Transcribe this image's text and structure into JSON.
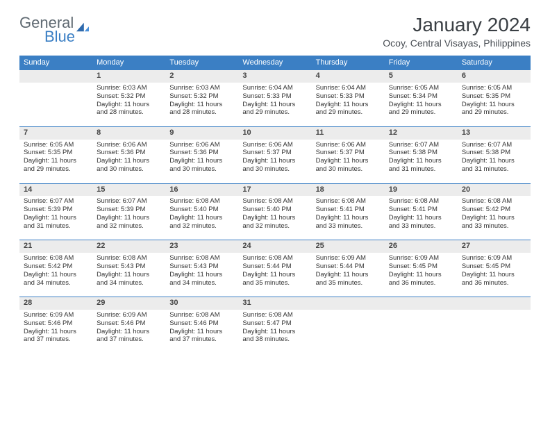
{
  "brand": {
    "part1": "General",
    "part2": "Blue"
  },
  "title": "January 2024",
  "location": "Ocoy, Central Visayas, Philippines",
  "colors": {
    "header_bg": "#3b7fc4",
    "daynum_bg": "#ececec",
    "border": "#3b7fc4"
  },
  "weekdays": [
    "Sunday",
    "Monday",
    "Tuesday",
    "Wednesday",
    "Thursday",
    "Friday",
    "Saturday"
  ],
  "weeks": [
    {
      "nums": [
        "",
        "1",
        "2",
        "3",
        "4",
        "5",
        "6"
      ],
      "cells": [
        null,
        {
          "sunrise": "Sunrise: 6:03 AM",
          "sunset": "Sunset: 5:32 PM",
          "dl1": "Daylight: 11 hours",
          "dl2": "and 28 minutes."
        },
        {
          "sunrise": "Sunrise: 6:03 AM",
          "sunset": "Sunset: 5:32 PM",
          "dl1": "Daylight: 11 hours",
          "dl2": "and 28 minutes."
        },
        {
          "sunrise": "Sunrise: 6:04 AM",
          "sunset": "Sunset: 5:33 PM",
          "dl1": "Daylight: 11 hours",
          "dl2": "and 29 minutes."
        },
        {
          "sunrise": "Sunrise: 6:04 AM",
          "sunset": "Sunset: 5:33 PM",
          "dl1": "Daylight: 11 hours",
          "dl2": "and 29 minutes."
        },
        {
          "sunrise": "Sunrise: 6:05 AM",
          "sunset": "Sunset: 5:34 PM",
          "dl1": "Daylight: 11 hours",
          "dl2": "and 29 minutes."
        },
        {
          "sunrise": "Sunrise: 6:05 AM",
          "sunset": "Sunset: 5:35 PM",
          "dl1": "Daylight: 11 hours",
          "dl2": "and 29 minutes."
        }
      ]
    },
    {
      "nums": [
        "7",
        "8",
        "9",
        "10",
        "11",
        "12",
        "13"
      ],
      "cells": [
        {
          "sunrise": "Sunrise: 6:05 AM",
          "sunset": "Sunset: 5:35 PM",
          "dl1": "Daylight: 11 hours",
          "dl2": "and 29 minutes."
        },
        {
          "sunrise": "Sunrise: 6:06 AM",
          "sunset": "Sunset: 5:36 PM",
          "dl1": "Daylight: 11 hours",
          "dl2": "and 30 minutes."
        },
        {
          "sunrise": "Sunrise: 6:06 AM",
          "sunset": "Sunset: 5:36 PM",
          "dl1": "Daylight: 11 hours",
          "dl2": "and 30 minutes."
        },
        {
          "sunrise": "Sunrise: 6:06 AM",
          "sunset": "Sunset: 5:37 PM",
          "dl1": "Daylight: 11 hours",
          "dl2": "and 30 minutes."
        },
        {
          "sunrise": "Sunrise: 6:06 AM",
          "sunset": "Sunset: 5:37 PM",
          "dl1": "Daylight: 11 hours",
          "dl2": "and 30 minutes."
        },
        {
          "sunrise": "Sunrise: 6:07 AM",
          "sunset": "Sunset: 5:38 PM",
          "dl1": "Daylight: 11 hours",
          "dl2": "and 31 minutes."
        },
        {
          "sunrise": "Sunrise: 6:07 AM",
          "sunset": "Sunset: 5:38 PM",
          "dl1": "Daylight: 11 hours",
          "dl2": "and 31 minutes."
        }
      ]
    },
    {
      "nums": [
        "14",
        "15",
        "16",
        "17",
        "18",
        "19",
        "20"
      ],
      "cells": [
        {
          "sunrise": "Sunrise: 6:07 AM",
          "sunset": "Sunset: 5:39 PM",
          "dl1": "Daylight: 11 hours",
          "dl2": "and 31 minutes."
        },
        {
          "sunrise": "Sunrise: 6:07 AM",
          "sunset": "Sunset: 5:39 PM",
          "dl1": "Daylight: 11 hours",
          "dl2": "and 32 minutes."
        },
        {
          "sunrise": "Sunrise: 6:08 AM",
          "sunset": "Sunset: 5:40 PM",
          "dl1": "Daylight: 11 hours",
          "dl2": "and 32 minutes."
        },
        {
          "sunrise": "Sunrise: 6:08 AM",
          "sunset": "Sunset: 5:40 PM",
          "dl1": "Daylight: 11 hours",
          "dl2": "and 32 minutes."
        },
        {
          "sunrise": "Sunrise: 6:08 AM",
          "sunset": "Sunset: 5:41 PM",
          "dl1": "Daylight: 11 hours",
          "dl2": "and 33 minutes."
        },
        {
          "sunrise": "Sunrise: 6:08 AM",
          "sunset": "Sunset: 5:41 PM",
          "dl1": "Daylight: 11 hours",
          "dl2": "and 33 minutes."
        },
        {
          "sunrise": "Sunrise: 6:08 AM",
          "sunset": "Sunset: 5:42 PM",
          "dl1": "Daylight: 11 hours",
          "dl2": "and 33 minutes."
        }
      ]
    },
    {
      "nums": [
        "21",
        "22",
        "23",
        "24",
        "25",
        "26",
        "27"
      ],
      "cells": [
        {
          "sunrise": "Sunrise: 6:08 AM",
          "sunset": "Sunset: 5:42 PM",
          "dl1": "Daylight: 11 hours",
          "dl2": "and 34 minutes."
        },
        {
          "sunrise": "Sunrise: 6:08 AM",
          "sunset": "Sunset: 5:43 PM",
          "dl1": "Daylight: 11 hours",
          "dl2": "and 34 minutes."
        },
        {
          "sunrise": "Sunrise: 6:08 AM",
          "sunset": "Sunset: 5:43 PM",
          "dl1": "Daylight: 11 hours",
          "dl2": "and 34 minutes."
        },
        {
          "sunrise": "Sunrise: 6:08 AM",
          "sunset": "Sunset: 5:44 PM",
          "dl1": "Daylight: 11 hours",
          "dl2": "and 35 minutes."
        },
        {
          "sunrise": "Sunrise: 6:09 AM",
          "sunset": "Sunset: 5:44 PM",
          "dl1": "Daylight: 11 hours",
          "dl2": "and 35 minutes."
        },
        {
          "sunrise": "Sunrise: 6:09 AM",
          "sunset": "Sunset: 5:45 PM",
          "dl1": "Daylight: 11 hours",
          "dl2": "and 36 minutes."
        },
        {
          "sunrise": "Sunrise: 6:09 AM",
          "sunset": "Sunset: 5:45 PM",
          "dl1": "Daylight: 11 hours",
          "dl2": "and 36 minutes."
        }
      ]
    },
    {
      "nums": [
        "28",
        "29",
        "30",
        "31",
        "",
        "",
        ""
      ],
      "cells": [
        {
          "sunrise": "Sunrise: 6:09 AM",
          "sunset": "Sunset: 5:46 PM",
          "dl1": "Daylight: 11 hours",
          "dl2": "and 37 minutes."
        },
        {
          "sunrise": "Sunrise: 6:09 AM",
          "sunset": "Sunset: 5:46 PM",
          "dl1": "Daylight: 11 hours",
          "dl2": "and 37 minutes."
        },
        {
          "sunrise": "Sunrise: 6:08 AM",
          "sunset": "Sunset: 5:46 PM",
          "dl1": "Daylight: 11 hours",
          "dl2": "and 37 minutes."
        },
        {
          "sunrise": "Sunrise: 6:08 AM",
          "sunset": "Sunset: 5:47 PM",
          "dl1": "Daylight: 11 hours",
          "dl2": "and 38 minutes."
        },
        null,
        null,
        null
      ]
    }
  ]
}
